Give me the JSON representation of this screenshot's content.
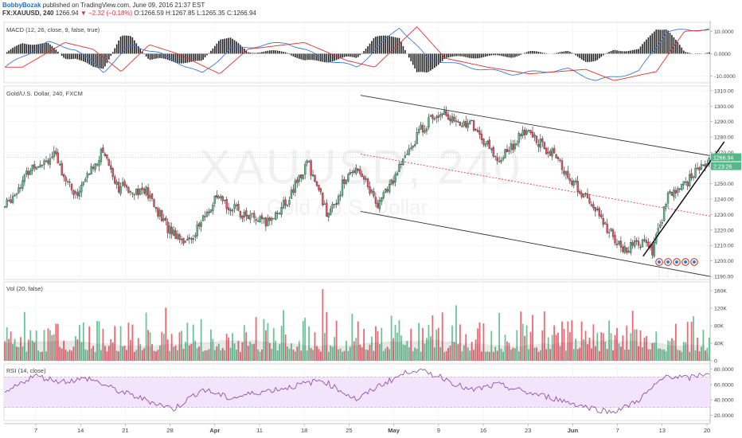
{
  "header": {
    "author": "BobbyBozak",
    "published_text": "published on TradingView.com, June 09, 2016 21:37 EST",
    "symbol_line": "FX:XAUUSD, 240",
    "last": "1266.94",
    "change": "−2.32 (−0.18%)",
    "ohlc": "O:1266.59 H:1267.85 L:1265.35 C:1266.94"
  },
  "watermark": {
    "symbol": "XAUUSD, 240",
    "name": "Gold / U.S. Dollar"
  },
  "colors": {
    "up": "#53b987",
    "down": "#eb4d5c",
    "macd": "#3c78d8",
    "signal": "#e0312f",
    "rsi": "#8e3fa8",
    "channel": "#333333",
    "mid": "#e0312f"
  },
  "chart_data": {
    "type": "candlestick",
    "panes": {
      "macd": {
        "label": "MACD (12, 26, close, 9, false, true)",
        "ticks": [
          "10.0000",
          "0.0000",
          "-10.0000"
        ],
        "ylim": [
          -13,
          14
        ],
        "macd_keys": [
          [
            0,
            -6
          ],
          [
            0.06,
            5
          ],
          [
            0.1,
            2
          ],
          [
            0.14,
            -8
          ],
          [
            0.18,
            4
          ],
          [
            0.22,
            0
          ],
          [
            0.28,
            -9
          ],
          [
            0.32,
            2
          ],
          [
            0.4,
            5
          ],
          [
            0.46,
            -3
          ],
          [
            0.5,
            -6
          ],
          [
            0.56,
            12
          ],
          [
            0.6,
            -2
          ],
          [
            0.66,
            -6
          ],
          [
            0.72,
            -9
          ],
          [
            0.8,
            -7
          ],
          [
            0.84,
            -12
          ],
          [
            0.9,
            -8
          ],
          [
            0.94,
            10
          ],
          [
            1,
            11
          ]
        ]
      },
      "price": {
        "label": "Gold/U.S. Dollar, 240, FXCM",
        "ticks": [
          "1310.00",
          "1300.00",
          "1290.00",
          "1280.00",
          "1270.00",
          "1260.00",
          "1250.00",
          "1240.00",
          "1230.00",
          "1220.00",
          "1210.00",
          "1200.00",
          "1190.00"
        ],
        "ylim": [
          1188,
          1313
        ],
        "last_label": "1266.94",
        "countdown": "2:23:26",
        "close_keys": [
          [
            0,
            1235
          ],
          [
            0.04,
            1262
          ],
          [
            0.07,
            1268
          ],
          [
            0.1,
            1242
          ],
          [
            0.14,
            1272
          ],
          [
            0.16,
            1248
          ],
          [
            0.2,
            1245
          ],
          [
            0.23,
            1222
          ],
          [
            0.26,
            1212
          ],
          [
            0.3,
            1240
          ],
          [
            0.34,
            1230
          ],
          [
            0.37,
            1224
          ],
          [
            0.4,
            1238
          ],
          [
            0.43,
            1264
          ],
          [
            0.46,
            1228
          ],
          [
            0.48,
            1250
          ],
          [
            0.5,
            1262
          ],
          [
            0.53,
            1236
          ],
          [
            0.56,
            1260
          ],
          [
            0.59,
            1285
          ],
          [
            0.62,
            1298
          ],
          [
            0.64,
            1288
          ],
          [
            0.66,
            1290
          ],
          [
            0.7,
            1265
          ],
          [
            0.74,
            1284
          ],
          [
            0.78,
            1268
          ],
          [
            0.8,
            1254
          ],
          [
            0.83,
            1238
          ],
          [
            0.86,
            1218
          ],
          [
            0.88,
            1206
          ],
          [
            0.9,
            1213
          ],
          [
            0.92,
            1206
          ],
          [
            0.94,
            1240
          ],
          [
            0.97,
            1252
          ],
          [
            1,
            1267
          ]
        ],
        "channel_upper": [
          {
            "x": 0.505,
            "y": 1307
          },
          {
            "x": 1,
            "y": 1268
          }
        ],
        "channel_lower": [
          {
            "x": 0.505,
            "y": 1232
          },
          {
            "x": 1,
            "y": 1190
          }
        ],
        "channel_mid": [
          {
            "x": 0.505,
            "y": 1269
          },
          {
            "x": 1,
            "y": 1229
          }
        ],
        "uptrend": [
          {
            "x": 0.905,
            "y": 1203
          },
          {
            "x": 1.02,
            "y": 1277
          }
        ]
      },
      "volume": {
        "label": "Vol (20, false)",
        "ticks": [
          "160K",
          "120K",
          "80K",
          "40K",
          "0"
        ],
        "ylim": [
          0,
          180
        ]
      },
      "rsi": {
        "label": "RSI (14, close)",
        "ticks": [
          "80.0000",
          "60.0000",
          "40.0000",
          "20.0000"
        ],
        "ylim": [
          13,
          87
        ],
        "band": [
          30,
          70
        ],
        "rsi_keys": [
          [
            0,
            48
          ],
          [
            0.04,
            72
          ],
          [
            0.08,
            64
          ],
          [
            0.12,
            68
          ],
          [
            0.16,
            52
          ],
          [
            0.2,
            40
          ],
          [
            0.24,
            28
          ],
          [
            0.28,
            54
          ],
          [
            0.32,
            42
          ],
          [
            0.36,
            50
          ],
          [
            0.4,
            56
          ],
          [
            0.45,
            66
          ],
          [
            0.5,
            40
          ],
          [
            0.53,
            58
          ],
          [
            0.58,
            80
          ],
          [
            0.62,
            70
          ],
          [
            0.66,
            52
          ],
          [
            0.7,
            60
          ],
          [
            0.74,
            50
          ],
          [
            0.78,
            42
          ],
          [
            0.82,
            32
          ],
          [
            0.86,
            24
          ],
          [
            0.88,
            30
          ],
          [
            0.9,
            40
          ],
          [
            0.94,
            72
          ],
          [
            0.97,
            68
          ],
          [
            1,
            76
          ]
        ]
      }
    },
    "x_ticks": [
      {
        "label": "7",
        "bold": false
      },
      {
        "label": "14",
        "bold": false
      },
      {
        "label": "21",
        "bold": false
      },
      {
        "label": "28",
        "bold": false
      },
      {
        "label": "Apr",
        "bold": true
      },
      {
        "label": "11",
        "bold": false
      },
      {
        "label": "18",
        "bold": false
      },
      {
        "label": "25",
        "bold": false
      },
      {
        "label": "May",
        "bold": true
      },
      {
        "label": "9",
        "bold": false
      },
      {
        "label": "16",
        "bold": false
      },
      {
        "label": "23",
        "bold": false
      },
      {
        "label": "Jun",
        "bold": true
      },
      {
        "label": "7",
        "bold": false
      },
      {
        "label": "13",
        "bold": false
      },
      {
        "label": "20",
        "bold": false
      }
    ]
  }
}
